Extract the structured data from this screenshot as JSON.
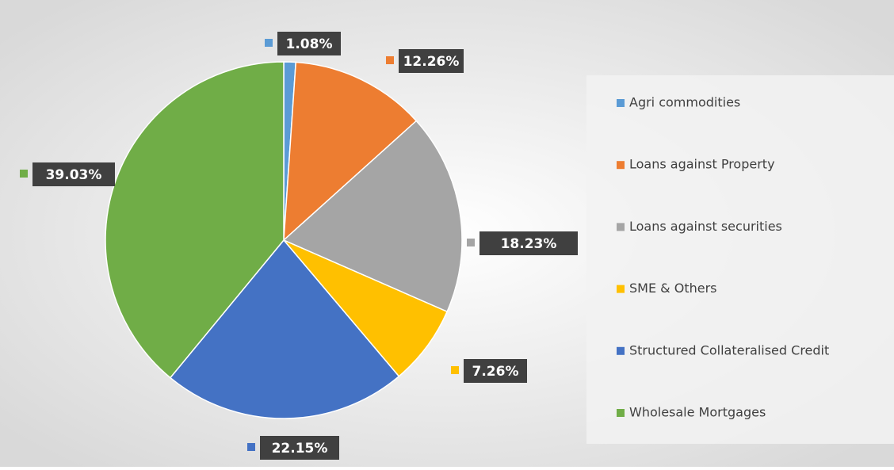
{
  "chart_data": {
    "type": "pie",
    "labels": [
      "Agri commodities",
      "Loans against Property",
      "Loans against securities",
      "SME & Others",
      "Structured Collateralised Credit",
      "Wholesale Mortgages"
    ],
    "values": [
      1.08,
      12.26,
      18.23,
      7.26,
      22.15,
      39.03
    ],
    "value_labels": [
      "1.08%",
      "12.26%",
      "18.23%",
      "7.26%",
      "22.15%",
      "39.03%"
    ],
    "colors": [
      "#5b9bd5",
      "#ed7d31",
      "#a5a5a5",
      "#ffc000",
      "#4472c4",
      "#70ad47"
    ],
    "legend": "right"
  }
}
